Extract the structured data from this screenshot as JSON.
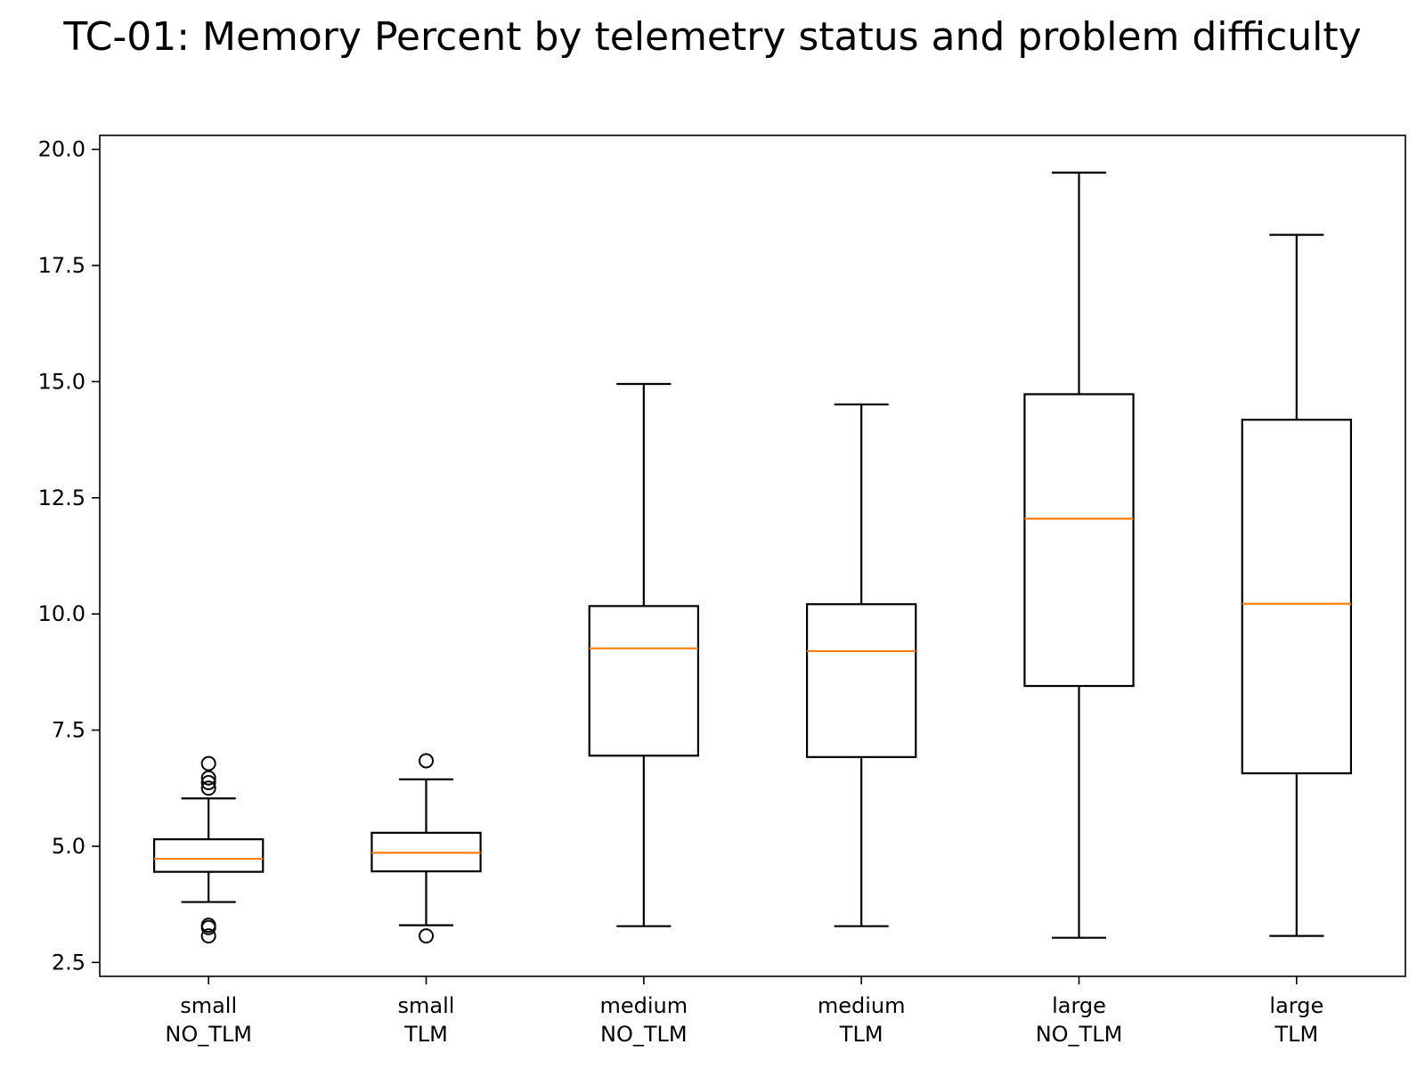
{
  "chart_data": {
    "type": "box",
    "title": "TC-01: Memory Percent by telemetry status and problem difficulty",
    "xlabel": "",
    "ylabel": "",
    "ylim": [
      2.2,
      20.3
    ],
    "yticks": [
      2.5,
      5.0,
      7.5,
      10.0,
      12.5,
      15.0,
      17.5,
      20.0
    ],
    "ytick_labels": [
      "2.5",
      "5.0",
      "7.5",
      "10.0",
      "12.5",
      "15.0",
      "17.5",
      "20.0"
    ],
    "grid": false,
    "median_color": "#ff7f0e",
    "box_color": "#000000",
    "categories": [
      {
        "line1": "small",
        "line2": "NO_TLM",
        "whisker_low": 3.8,
        "q1": 4.45,
        "median": 4.73,
        "q3": 5.15,
        "whisker_high": 6.03,
        "outliers": [
          6.78,
          6.47,
          6.37,
          6.25,
          3.3,
          3.25,
          3.07
        ]
      },
      {
        "line1": "small",
        "line2": "TLM",
        "whisker_low": 3.3,
        "q1": 4.46,
        "median": 4.86,
        "q3": 5.29,
        "whisker_high": 6.44,
        "outliers": [
          6.84,
          3.07
        ]
      },
      {
        "line1": "medium",
        "line2": "NO_TLM",
        "whisker_low": 3.28,
        "q1": 6.95,
        "median": 9.26,
        "q3": 10.17,
        "whisker_high": 14.95,
        "outliers": []
      },
      {
        "line1": "medium",
        "line2": "TLM",
        "whisker_low": 3.28,
        "q1": 6.92,
        "median": 9.2,
        "q3": 10.21,
        "whisker_high": 14.51,
        "outliers": []
      },
      {
        "line1": "large",
        "line2": "NO_TLM",
        "whisker_low": 3.03,
        "q1": 8.45,
        "median": 12.05,
        "q3": 14.73,
        "whisker_high": 19.5,
        "outliers": []
      },
      {
        "line1": "large",
        "line2": "TLM",
        "whisker_low": 3.07,
        "q1": 6.57,
        "median": 10.22,
        "q3": 14.18,
        "whisker_high": 18.16,
        "outliers": []
      }
    ]
  }
}
